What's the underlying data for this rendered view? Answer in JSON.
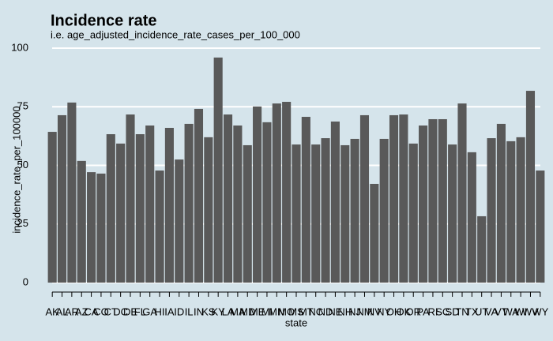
{
  "chart_data": {
    "type": "bar",
    "title": "Incidence rate",
    "subtitle": "i.e. age_adjusted_incidence_rate_cases_per_100_000",
    "x_label": "state",
    "y_label": "incidence_rate_per_100000",
    "categories": [
      "AK",
      "AL",
      "AR",
      "AZ",
      "CA",
      "CO",
      "CT",
      "DC",
      "DE",
      "FL",
      "GA",
      "HI",
      "IA",
      "ID",
      "IL",
      "IN",
      "KS",
      "KY",
      "LA",
      "MA",
      "MD",
      "ME",
      "MI",
      "MN",
      "MO",
      "MS",
      "MT",
      "NC",
      "ND",
      "NE",
      "NH",
      "NJ",
      "NM",
      "NV",
      "NY",
      "OH",
      "OK",
      "OR",
      "PA",
      "RI",
      "SC",
      "SD",
      "TN",
      "TX",
      "UT",
      "VA",
      "VT",
      "WA",
      "WI",
      "WV",
      "WY"
    ],
    "values": [
      64.3,
      71.4,
      76.8,
      51.9,
      47.1,
      46.5,
      63.3,
      59.3,
      71.7,
      63.3,
      67,
      47.8,
      66,
      52.5,
      67.7,
      74.1,
      62,
      96,
      71.7,
      67,
      58.6,
      75.1,
      68.4,
      76.4,
      77.1,
      58.9,
      70.7,
      58.9,
      61.6,
      68.7,
      58.6,
      61.3,
      71.4,
      42.1,
      61.3,
      71.4,
      71.7,
      59.3,
      67,
      69.7,
      69.7,
      58.9,
      76.4,
      55.6,
      28.3,
      61.6,
      67.7,
      60.3,
      62,
      81.8,
      47.8
    ],
    "color": "#595959",
    "ylim": [
      0,
      100
    ],
    "yticks": [
      0,
      25,
      50,
      75,
      100
    ],
    "grid": true
  }
}
